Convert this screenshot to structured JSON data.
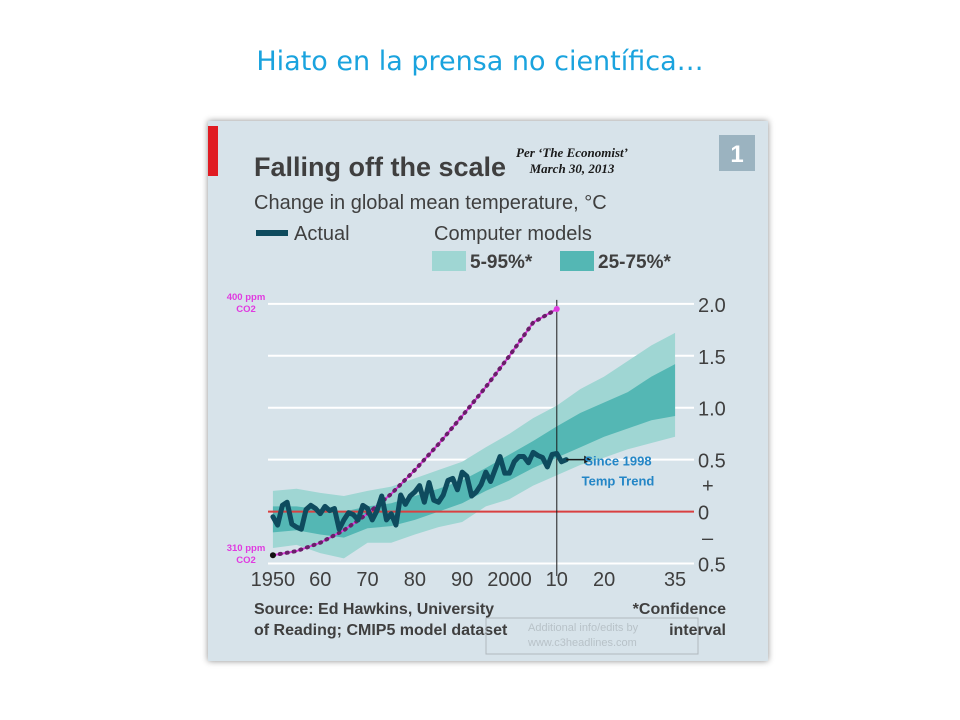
{
  "slide": {
    "title": "Hiato en la prensa no científica…"
  },
  "chart_data": {
    "type": "line",
    "title": "Falling off the scale",
    "subtitle": "Change in global mean temperature, °C",
    "chart_number": "1",
    "note": [
      "Per ‘The Economist’",
      "March 30, 2013"
    ],
    "legend": {
      "actual_label": "Actual",
      "models_title": "Computer models",
      "band_outer_label": "5-95%*",
      "band_inner_label": "25-75%*"
    },
    "x_ticks": [
      {
        "x": 1950,
        "label": "1950"
      },
      {
        "x": 1960,
        "label": "60"
      },
      {
        "x": 1970,
        "label": "70"
      },
      {
        "x": 1980,
        "label": "80"
      },
      {
        "x": 1990,
        "label": "90"
      },
      {
        "x": 2000,
        "label": "2000"
      },
      {
        "x": 2010,
        "label": "10"
      },
      {
        "x": 2020,
        "label": "20"
      },
      {
        "x": 2035,
        "label": "35"
      }
    ],
    "xlim": [
      1946,
      2039
    ],
    "y_ticks": [
      {
        "y": 2.0,
        "label": "2.0"
      },
      {
        "y": 1.5,
        "label": "1.5"
      },
      {
        "y": 1.0,
        "label": "1.0"
      },
      {
        "y": 0.5,
        "label": "0.5"
      },
      {
        "y": 0.0,
        "label": "0"
      },
      {
        "y": -0.5,
        "label": "0.5"
      }
    ],
    "plus_label": "+",
    "minus_label": "–",
    "ylim": [
      -0.62,
      2.22
    ],
    "baseline": 0,
    "colors": {
      "actual": "#0e4b5e",
      "band_outer": "#9fd6d3",
      "band_inner": "#54b7b4",
      "baseline": "#d94040",
      "co2": "#e03be0",
      "co2_dots": "#6a1e6a",
      "arrow_text": "#2486c6",
      "accent": "#e01b22",
      "background": "#d7e3ea"
    },
    "series": [
      {
        "name": "Actual",
        "x": [
          1950,
          1951,
          1952,
          1953,
          1954,
          1955,
          1956,
          1957,
          1958,
          1959,
          1960,
          1961,
          1962,
          1963,
          1964,
          1965,
          1966,
          1967,
          1968,
          1969,
          1970,
          1971,
          1972,
          1973,
          1974,
          1975,
          1976,
          1977,
          1978,
          1979,
          1980,
          1981,
          1982,
          1983,
          1984,
          1985,
          1986,
          1987,
          1988,
          1989,
          1990,
          1991,
          1992,
          1993,
          1994,
          1995,
          1996,
          1997,
          1998,
          1999,
          2000,
          2001,
          2002,
          2003,
          2004,
          2005,
          2006,
          2007,
          2008,
          2009,
          2010,
          2011,
          2012
        ],
        "values": [
          -0.05,
          -0.13,
          0.06,
          0.09,
          -0.12,
          -0.15,
          -0.17,
          0.02,
          0.06,
          0.03,
          -0.02,
          0.05,
          0.01,
          0.03,
          -0.17,
          -0.08,
          -0.01,
          -0.03,
          -0.08,
          0.06,
          0.03,
          -0.08,
          0.01,
          0.15,
          -0.08,
          -0.02,
          -0.13,
          0.16,
          0.07,
          0.15,
          0.19,
          0.25,
          0.09,
          0.28,
          0.11,
          0.09,
          0.16,
          0.3,
          0.32,
          0.21,
          0.38,
          0.34,
          0.15,
          0.19,
          0.26,
          0.38,
          0.29,
          0.41,
          0.53,
          0.37,
          0.37,
          0.48,
          0.53,
          0.53,
          0.47,
          0.57,
          0.54,
          0.52,
          0.43,
          0.55,
          0.56,
          0.48,
          0.5
        ]
      }
    ],
    "model_range": {
      "x": [
        1950,
        1955,
        1960,
        1965,
        1970,
        1975,
        1980,
        1985,
        1990,
        1995,
        2000,
        2005,
        2010,
        2015,
        2020,
        2025,
        2030,
        2035
      ],
      "p5": [
        -0.35,
        -0.32,
        -0.4,
        -0.45,
        -0.3,
        -0.3,
        -0.22,
        -0.15,
        -0.1,
        0.05,
        0.12,
        0.25,
        0.35,
        0.45,
        0.52,
        0.6,
        0.66,
        0.72
      ],
      "p25": [
        -0.2,
        -0.18,
        -0.22,
        -0.25,
        -0.16,
        -0.14,
        -0.08,
        0.0,
        0.08,
        0.2,
        0.3,
        0.42,
        0.52,
        0.62,
        0.72,
        0.8,
        0.88,
        0.92
      ],
      "p75": [
        0.05,
        0.05,
        0.02,
        0.0,
        0.05,
        0.08,
        0.15,
        0.22,
        0.3,
        0.42,
        0.55,
        0.68,
        0.82,
        0.95,
        1.05,
        1.15,
        1.3,
        1.42
      ],
      "p95": [
        0.2,
        0.22,
        0.18,
        0.15,
        0.2,
        0.24,
        0.32,
        0.4,
        0.48,
        0.62,
        0.75,
        0.9,
        1.02,
        1.18,
        1.3,
        1.45,
        1.6,
        1.72
      ]
    },
    "co2_curve": {
      "x": [
        1950,
        1955,
        1960,
        1965,
        1970,
        1975,
        1980,
        1985,
        1990,
        1995,
        2000,
        2005,
        2010
      ],
      "values": [
        -0.42,
        -0.38,
        -0.3,
        -0.18,
        -0.02,
        0.17,
        0.4,
        0.65,
        0.92,
        1.2,
        1.5,
        1.82,
        1.95
      ],
      "start_label": [
        "310 ppm",
        "CO2"
      ],
      "end_label": [
        "400 ppm",
        "CO2"
      ]
    },
    "cutoff_year": 2010,
    "trend_annotation": {
      "from_x": 2012,
      "to_x": 2016,
      "y": 0.5,
      "lines": [
        "Since 1998",
        "Temp Trend"
      ]
    },
    "source": [
      "Source: Ed Hawkins, University",
      "of Reading; CMIP5 model dataset"
    ],
    "footnote": [
      "*Confidence",
      "interval"
    ],
    "watermark": [
      "Additional info/edits by",
      "www.c3headlines.com"
    ]
  }
}
